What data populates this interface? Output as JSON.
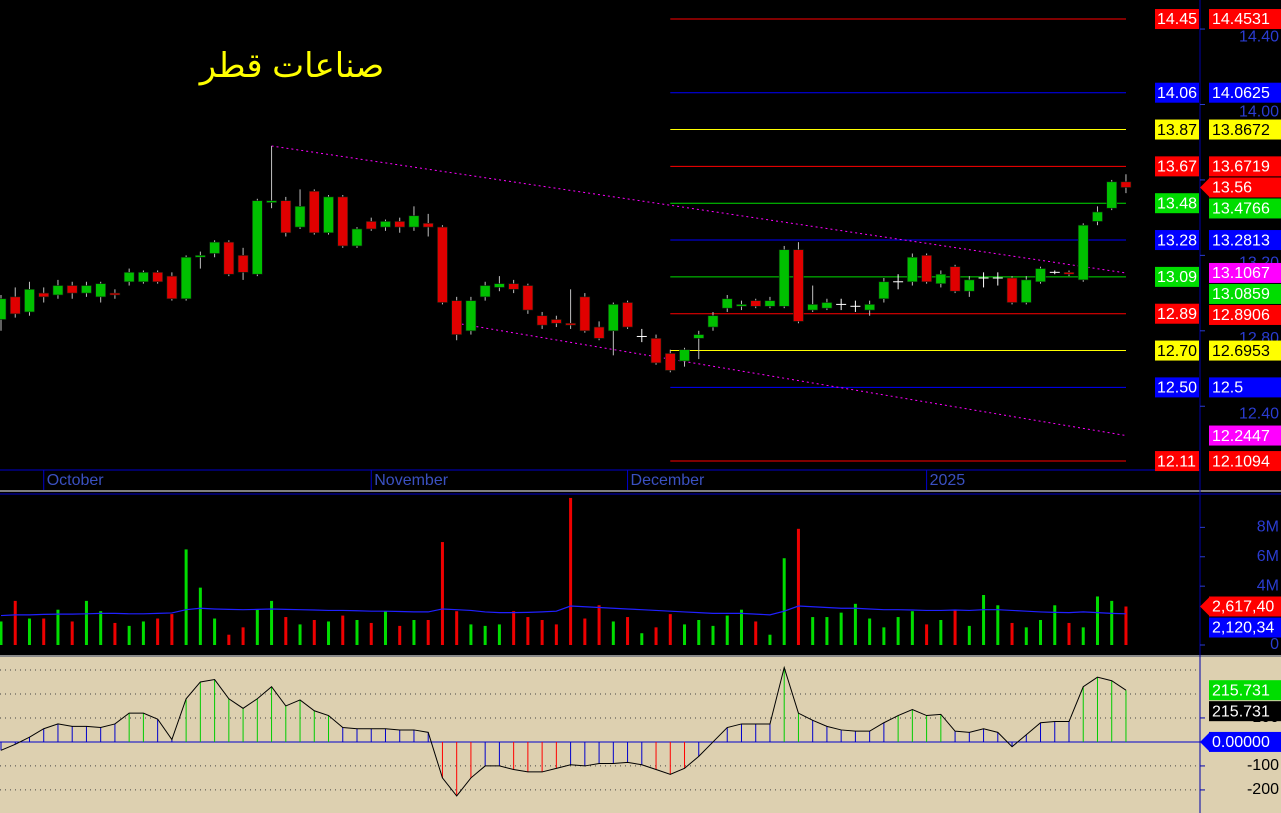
{
  "chart_data": [
    {
      "type": "candlestick",
      "title": "صناعات قطر",
      "categories": [
        null,
        null,
        null,
        "October",
        null,
        null,
        null,
        null,
        null,
        null,
        null,
        null,
        null,
        null,
        null,
        null,
        null,
        null,
        null,
        null,
        null,
        null,
        null,
        null,
        null,
        null,
        "November",
        null,
        null,
        null,
        null,
        null,
        null,
        null,
        null,
        null,
        null,
        null,
        null,
        null,
        null,
        null,
        null,
        null,
        "December",
        null,
        null,
        null,
        null,
        null,
        null,
        null,
        null,
        null,
        null,
        null,
        null,
        null,
        null,
        null,
        null,
        null,
        null,
        null,
        null,
        "2025",
        null,
        null,
        null,
        null,
        null,
        null,
        null,
        null,
        null,
        null,
        null,
        null,
        null,
        null
      ],
      "open": [
        12.86,
        12.98,
        12.9,
        13.0,
        12.99,
        13.04,
        13.0,
        12.98,
        13.0,
        13.06,
        13.06,
        13.11,
        13.09,
        12.97,
        13.19,
        13.21,
        13.27,
        13.2,
        13.1,
        13.48,
        13.49,
        13.35,
        13.54,
        13.32,
        13.51,
        13.25,
        13.38,
        13.35,
        13.38,
        13.35,
        13.37,
        13.35,
        12.96,
        12.8,
        12.98,
        13.03,
        13.05,
        13.04,
        12.88,
        12.86,
        12.84,
        12.98,
        12.82,
        12.8,
        12.95,
        12.77,
        12.76,
        12.68,
        12.64,
        12.76,
        12.82,
        12.92,
        12.93,
        12.96,
        12.93,
        12.93,
        13.23,
        12.91,
        12.92,
        12.94,
        12.93,
        12.91,
        12.97,
        13.06,
        13.06,
        13.2,
        13.05,
        13.14,
        13.01,
        13.08,
        13.08,
        13.08,
        12.95,
        13.06,
        13.11,
        13.11,
        13.07,
        13.38,
        13.45,
        13.59
      ],
      "high": [
        12.99,
        13.03,
        13.06,
        13.03,
        13.07,
        13.06,
        13.06,
        13.06,
        13.02,
        13.13,
        13.12,
        13.12,
        13.11,
        13.2,
        13.22,
        13.28,
        13.28,
        13.24,
        13.5,
        13.78,
        13.51,
        13.55,
        13.55,
        13.52,
        13.52,
        13.35,
        13.4,
        13.39,
        13.4,
        13.46,
        13.42,
        13.36,
        12.98,
        12.98,
        13.06,
        13.09,
        13.07,
        13.05,
        12.9,
        12.88,
        13.02,
        13.0,
        12.85,
        12.95,
        12.96,
        12.81,
        12.78,
        12.7,
        12.71,
        12.8,
        12.9,
        12.99,
        12.96,
        12.97,
        12.98,
        13.25,
        13.27,
        13.04,
        12.97,
        12.97,
        12.96,
        12.96,
        13.08,
        13.1,
        13.21,
        13.21,
        13.12,
        13.15,
        13.09,
        13.11,
        13.11,
        13.09,
        13.09,
        13.14,
        13.12,
        13.12,
        13.37,
        13.46,
        13.6,
        13.63
      ],
      "low": [
        12.8,
        12.87,
        12.88,
        12.95,
        12.97,
        12.97,
        12.98,
        12.95,
        12.97,
        13.04,
        13.05,
        13.05,
        12.96,
        12.96,
        13.13,
        13.19,
        13.09,
        13.07,
        13.09,
        13.45,
        13.3,
        13.34,
        13.31,
        13.31,
        13.24,
        13.24,
        13.33,
        13.33,
        13.32,
        13.33,
        13.3,
        12.94,
        12.75,
        12.78,
        12.96,
        13.01,
        13.0,
        12.89,
        12.81,
        12.82,
        12.81,
        12.79,
        12.75,
        12.67,
        12.81,
        12.74,
        12.62,
        12.58,
        12.61,
        12.65,
        12.8,
        12.9,
        12.91,
        12.92,
        12.92,
        12.92,
        12.84,
        12.9,
        12.91,
        12.91,
        12.9,
        12.88,
        12.95,
        13.02,
        13.04,
        13.05,
        13.03,
        13.0,
        12.98,
        13.03,
        13.04,
        12.94,
        12.94,
        13.05,
        13.1,
        13.09,
        13.06,
        13.36,
        13.44,
        13.53
      ],
      "close": [
        12.97,
        12.89,
        13.02,
        12.98,
        13.04,
        13.0,
        13.04,
        13.05,
        12.99,
        13.11,
        13.11,
        13.06,
        12.97,
        13.19,
        13.2,
        13.27,
        13.1,
        13.11,
        13.49,
        13.49,
        13.32,
        13.46,
        13.32,
        13.51,
        13.25,
        13.34,
        13.34,
        13.38,
        13.35,
        13.41,
        13.35,
        12.95,
        12.78,
        12.96,
        13.04,
        13.05,
        13.02,
        12.91,
        12.83,
        12.84,
        12.83,
        12.8,
        12.76,
        12.94,
        12.82,
        12.77,
        12.63,
        12.59,
        12.7,
        12.78,
        12.88,
        12.97,
        12.94,
        12.93,
        12.96,
        13.23,
        12.85,
        12.94,
        12.95,
        12.94,
        12.93,
        12.94,
        13.06,
        13.06,
        13.19,
        13.06,
        13.1,
        13.01,
        13.07,
        13.08,
        13.08,
        12.95,
        13.07,
        13.13,
        13.11,
        13.1,
        13.36,
        13.43,
        13.59,
        13.56
      ],
      "colors": {
        "up": "#00c000",
        "down": "#e00000",
        "flat": "#ffffff",
        "wick": "#c0c0c0",
        "title": "#ffff00",
        "axis": "#0000cc",
        "ticks": "#2a3cd0"
      },
      "ylim": [
        12.062,
        14.554
      ],
      "yticks": [
        {
          "value": 12.4,
          "label": "12.40"
        },
        {
          "value": 12.8,
          "label": "12.80"
        },
        {
          "value": 13.2,
          "label": "13.20"
        },
        {
          "value": 13.6,
          "label": "13.60"
        },
        {
          "value": 14.0,
          "label": "14.00"
        },
        {
          "value": 14.4,
          "label": "14.40"
        }
      ],
      "levels_from_index": 47,
      "levels": [
        {
          "value": 14.4531,
          "label": "14.45",
          "color": "#ff0000"
        },
        {
          "value": 14.0625,
          "label": "14.06",
          "color": "#0000ff"
        },
        {
          "value": 13.8672,
          "label": "13.87",
          "color": "#ffff00"
        },
        {
          "value": 13.6719,
          "label": "13.67",
          "color": "#ff0000"
        },
        {
          "value": 13.4766,
          "label": "13.48",
          "color": "#00dd00"
        },
        {
          "value": 13.2813,
          "label": "13.28",
          "color": "#0000ff"
        },
        {
          "value": 13.0859,
          "label": "13.09",
          "color": "#00dd00"
        },
        {
          "value": 12.8906,
          "label": "12.89",
          "color": "#ff0000"
        },
        {
          "value": 12.6953,
          "label": "12.70",
          "color": "#ffff00"
        },
        {
          "value": 12.5,
          "label": "12.50",
          "color": "#0000ff"
        },
        {
          "value": 12.1094,
          "label": "12.11",
          "color": "#ff0000"
        }
      ],
      "trendlines": [
        {
          "x": [
            19,
            79
          ],
          "y": [
            13.78,
            13.1067
          ],
          "color": "#ff00ff"
        },
        {
          "x": [
            32,
            79
          ],
          "y": [
            12.84,
            12.2447
          ],
          "color": "#ff00ff"
        }
      ],
      "price_labels": [
        {
          "value": 13.56,
          "color": "#ff0000",
          "arrow": true
        }
      ]
    },
    {
      "type": "volume",
      "values": [
        1600000,
        3000000,
        1800000,
        1800000,
        2400000,
        1600000,
        3000000,
        2300000,
        1500000,
        1300000,
        1600000,
        1800000,
        2100000,
        6500000,
        3900000,
        1800000,
        700000,
        1200000,
        2400000,
        3000000,
        1900000,
        1400000,
        1700000,
        1600000,
        2000000,
        1700000,
        1500000,
        2300000,
        1300000,
        1700000,
        1700000,
        7000000,
        2300000,
        1400000,
        1300000,
        1400000,
        2300000,
        1900000,
        1700000,
        1400000,
        10000000,
        1800000,
        2700000,
        1600000,
        1900000,
        800000,
        1200000,
        2100000,
        1400000,
        1700000,
        1300000,
        2000000,
        2400000,
        1600000,
        700000,
        5900000,
        7900000,
        1900000,
        1900000,
        2200000,
        2800000,
        1800000,
        1200000,
        1900000,
        2300000,
        1400000,
        1700000,
        2400000,
        1300000,
        3400000,
        2700000,
        1500000,
        1200000,
        1700000,
        2700000,
        1500000,
        1200000,
        3300000,
        3000000,
        2617400
      ],
      "ma": [
        2000000,
        2050000,
        2050000,
        2080000,
        2100000,
        2100000,
        2120000,
        2150000,
        2150000,
        2120000,
        2120000,
        2150000,
        2180000,
        2400000,
        2500000,
        2450000,
        2420000,
        2400000,
        2420000,
        2450000,
        2420000,
        2400000,
        2380000,
        2350000,
        2350000,
        2330000,
        2300000,
        2300000,
        2280000,
        2250000,
        2250000,
        2450000,
        2400000,
        2350000,
        2250000,
        2200000,
        2200000,
        2220000,
        2250000,
        2300000,
        2650000,
        2600000,
        2550000,
        2500000,
        2450000,
        2400000,
        2350000,
        2300000,
        2250000,
        2200000,
        2150000,
        2150000,
        2150000,
        2100000,
        2050000,
        2300000,
        2650000,
        2600000,
        2550000,
        2500000,
        2500000,
        2450000,
        2400000,
        2400000,
        2380000,
        2350000,
        2350000,
        2380000,
        2350000,
        2400000,
        2400000,
        2350000,
        2300000,
        2250000,
        2220000,
        2200000,
        2250000,
        2200000,
        2150000,
        2120340
      ],
      "colors": {
        "up": "#00dd00",
        "down": "#ee0000",
        "ma": "#2020ff",
        "ticks": "#2a3cd0"
      },
      "ylim": [
        0,
        10200000
      ],
      "yticks": [
        0,
        {
          "value": 4000000,
          "label": "4M"
        },
        {
          "value": 6000000,
          "label": "6M"
        },
        {
          "value": 8000000,
          "label": "8M"
        }
      ],
      "value_boxes": [
        {
          "value": 2617400,
          "label": "2,617,40",
          "color": "#ff0000",
          "arrow": true
        },
        {
          "value": 2120340,
          "label": "2,120,34",
          "color": "#0000ff"
        }
      ]
    },
    {
      "type": "cci",
      "values": [
        -35,
        -10,
        20,
        55,
        75,
        65,
        65,
        60,
        75,
        120,
        120,
        95,
        10,
        180,
        250,
        260,
        180,
        140,
        180,
        230,
        150,
        175,
        130,
        110,
        60,
        55,
        55,
        55,
        50,
        50,
        40,
        -150,
        -225,
        -150,
        -100,
        -100,
        -115,
        -125,
        -125,
        -110,
        -95,
        -100,
        -90,
        -90,
        -85,
        -95,
        -115,
        -135,
        -110,
        -60,
        0,
        60,
        75,
        75,
        75,
        310,
        120,
        90,
        65,
        50,
        45,
        45,
        80,
        110,
        135,
        110,
        115,
        45,
        40,
        55,
        40,
        -20,
        30,
        80,
        85,
        85,
        230,
        270,
        255,
        215.731
      ],
      "bands": [
        -100,
        100
      ],
      "colors": {
        "above": "#00cc00",
        "mid": "#0000cc",
        "below": "#ff0000",
        "line": "#000000",
        "zero": "#0000cc",
        "background": "#ddd0b0"
      },
      "ylim": [
        -292,
        354
      ],
      "yticks": [
        -200,
        -100,
        100
      ],
      "grid": [
        -200,
        -100,
        100,
        200,
        300
      ],
      "value_boxes": [
        {
          "value": 215.731,
          "color": "#00dd00"
        },
        {
          "value": 215.731,
          "color": "#000000"
        },
        {
          "value": 0,
          "label": "0.00000",
          "color": "#0000ff",
          "arrow": true
        }
      ]
    }
  ]
}
